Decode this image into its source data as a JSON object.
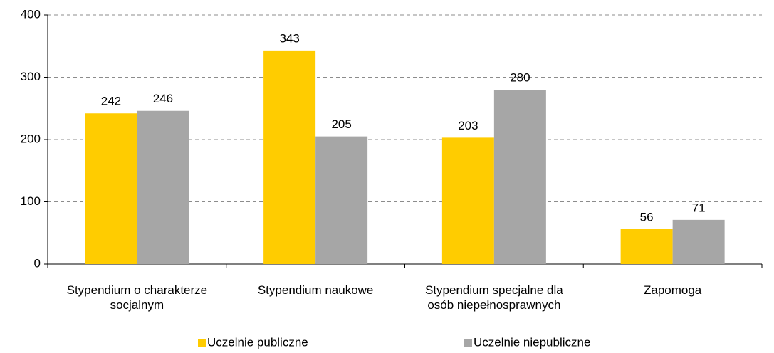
{
  "chart_data": {
    "type": "bar",
    "categories": [
      "Stypendium o charakterze socjalnym",
      "Stypendium naukowe",
      "Stypendium specjalne dla osób niepełnosprawnych",
      "Zapomoga"
    ],
    "series": [
      {
        "name": "Uczelnie publiczne",
        "color": "#ffcc00",
        "values": [
          242,
          343,
          203,
          56
        ]
      },
      {
        "name": "Uczelnie niepubliczne",
        "color": "#a6a6a6",
        "values": [
          246,
          205,
          280,
          71
        ]
      }
    ],
    "ylim": [
      0,
      400
    ],
    "yticks": [
      0,
      100,
      200,
      300,
      400
    ],
    "grid": true,
    "legend": "bottom"
  }
}
